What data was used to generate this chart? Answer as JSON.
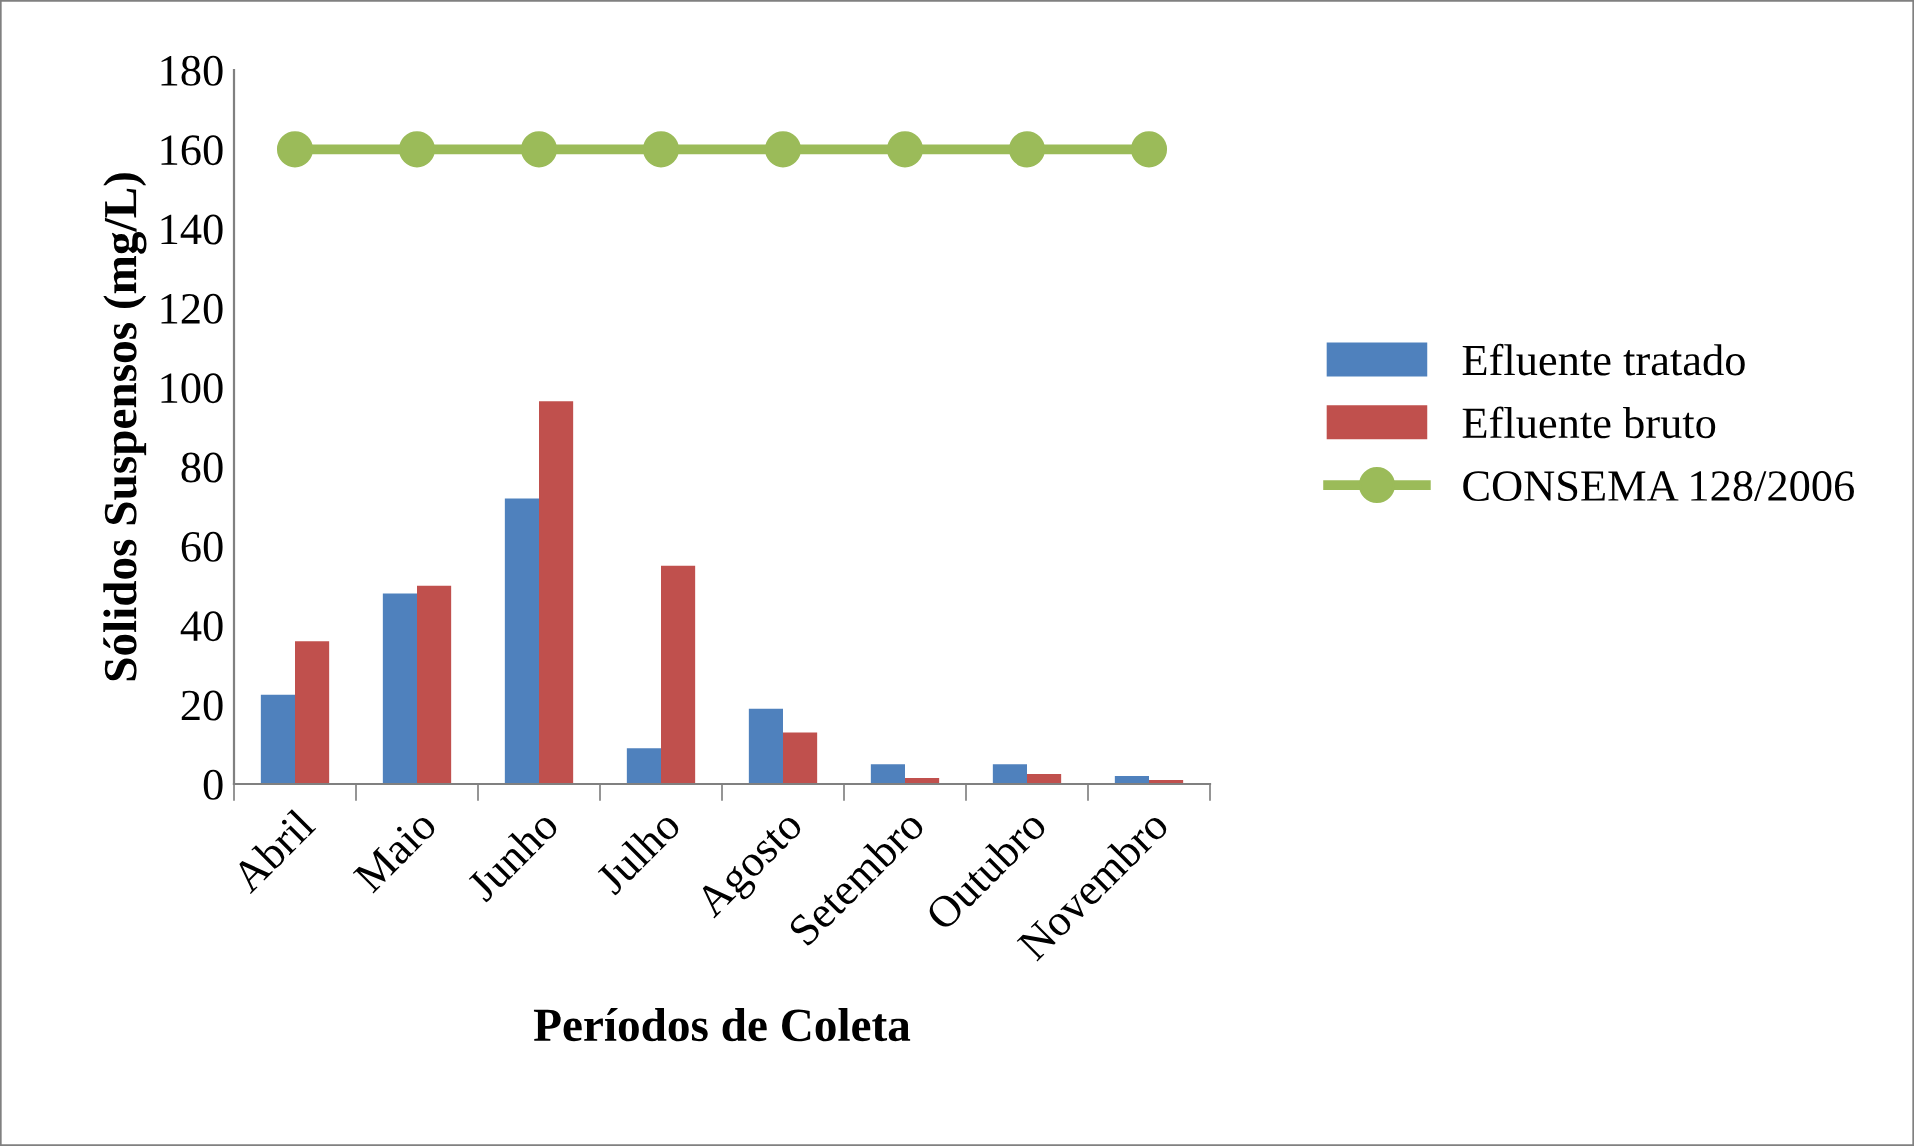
{
  "chart_data": {
    "type": "bar",
    "xlabel": "Períodos de Coleta",
    "ylabel": "Sólidos Suspensos (mg/L)",
    "categories": [
      "Abril",
      "Maio",
      "Junho",
      "Julho",
      "Agosto",
      "Setembro",
      "Outubro",
      "Novembro"
    ],
    "series": [
      {
        "name": "Efluente tratado",
        "color": "#4f81bd",
        "values": [
          22.5,
          48,
          72,
          9,
          19,
          5,
          5,
          2
        ]
      },
      {
        "name": "Efluente bruto",
        "color": "#c0504d",
        "values": [
          36,
          50,
          96.5,
          55,
          13,
          1.5,
          2.5,
          1
        ]
      },
      {
        "name": "CONSEMA 128/2006",
        "type": "line",
        "color": "#9bbb59",
        "marker": "circle",
        "values": [
          160,
          160,
          160,
          160,
          160,
          160,
          160,
          160
        ]
      }
    ],
    "ylim": [
      0,
      180
    ],
    "yticks": [
      0,
      20,
      40,
      60,
      80,
      100,
      120,
      140,
      160,
      180
    ],
    "grid": false,
    "legend": "right"
  }
}
